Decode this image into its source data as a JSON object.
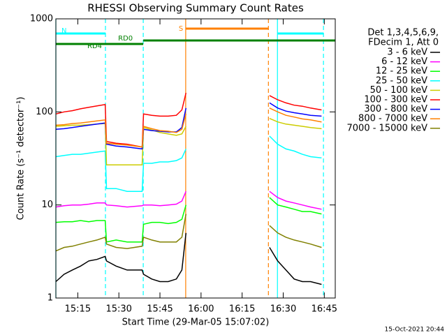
{
  "chart_data": {
    "type": "line",
    "title": "RHESSI Observing Summary Count Rates",
    "x_label": "Start Time (29-Mar-05 15:07:02)",
    "y_label": "Count Rate (s⁻¹ detector⁻¹)",
    "footer": "15-Oct-2021 20:44",
    "legend_header": [
      "Det 1,3,4,5,6,9,",
      "FDecim 1, Att 0"
    ],
    "log_y": true,
    "ylim": [
      1,
      1000
    ],
    "yticks": [
      1,
      10,
      100,
      1000
    ],
    "xlim": [
      7,
      109
    ],
    "xticks": [
      {
        "value": 15,
        "label": "15:15"
      },
      {
        "value": 30,
        "label": "15:30"
      },
      {
        "value": 45,
        "label": "15:45"
      },
      {
        "value": 60,
        "label": "16:00"
      },
      {
        "value": 75,
        "label": "16:15"
      },
      {
        "value": 90,
        "label": "16:30"
      },
      {
        "value": 105,
        "label": "16:45"
      }
    ],
    "x": [
      7,
      10,
      13,
      16,
      19,
      22,
      25,
      25.5,
      29,
      33,
      38.5,
      39,
      42,
      45,
      48,
      51,
      53,
      54.5,
      70,
      85,
      88,
      91,
      94,
      97,
      100,
      104
    ],
    "series": [
      {
        "name": "3 - 6 keV",
        "color": "#000000",
        "values": [
          1.5,
          1.8,
          2,
          2.2,
          2.5,
          2.6,
          2.8,
          2.5,
          2.2,
          2,
          2,
          1.8,
          1.6,
          1.5,
          1.5,
          1.6,
          2,
          5,
          null,
          3.5,
          2.5,
          2,
          1.6,
          1.5,
          1.5,
          1.4
        ]
      },
      {
        "name": "6 - 12 keV",
        "color": "#ff00ff",
        "values": [
          9.5,
          9.8,
          10,
          10,
          10.2,
          10.5,
          10.5,
          10,
          9.8,
          9.5,
          9.8,
          10,
          10,
          9.8,
          10,
          10.2,
          11,
          14,
          null,
          14,
          12,
          11,
          10.5,
          10,
          9.5,
          9
        ]
      },
      {
        "name": "12 - 25 keV",
        "color": "#00ff00",
        "values": [
          6.5,
          6.6,
          6.6,
          6.8,
          6.6,
          6.8,
          6.8,
          4,
          4.2,
          4,
          4,
          6.2,
          6.5,
          6.5,
          6.3,
          6.5,
          7,
          10,
          null,
          12,
          10,
          9.5,
          9,
          8.5,
          8.5,
          8
        ]
      },
      {
        "name": "25 - 50 keV",
        "color": "#00ffff",
        "values": [
          33,
          34,
          35,
          35,
          36,
          37,
          38,
          15,
          15,
          14,
          14,
          28,
          28,
          29,
          29,
          30,
          32,
          40,
          null,
          55,
          45,
          40,
          38,
          35,
          33,
          32
        ]
      },
      {
        "name": "50 - 100 keV",
        "color": "#cccc00",
        "values": [
          70,
          71,
          72,
          72,
          73,
          74,
          75,
          27,
          27,
          27,
          27,
          68,
          64,
          60,
          58,
          56,
          58,
          70,
          null,
          85,
          78,
          74,
          72,
          70,
          68,
          66
        ]
      },
      {
        "name": "100 - 300 keV",
        "color": "#ff0000",
        "values": [
          95,
          100,
          103,
          108,
          112,
          116,
          120,
          48,
          46,
          45,
          42,
          95,
          92,
          90,
          90,
          92,
          105,
          160,
          null,
          150,
          135,
          125,
          118,
          115,
          110,
          105
        ]
      },
      {
        "name": "300 - 800 keV",
        "color": "#0000ff",
        "values": [
          65,
          66,
          68,
          70,
          72,
          74,
          76,
          45,
          43,
          42,
          40,
          65,
          63,
          62,
          61,
          61,
          68,
          110,
          null,
          125,
          110,
          102,
          98,
          95,
          92,
          90
        ]
      },
      {
        "name": "800 - 7000 keV",
        "color": "#ff8000",
        "values": [
          72,
          73,
          75,
          76,
          78,
          80,
          82,
          46,
          45,
          44,
          42,
          70,
          66,
          63,
          62,
          60,
          65,
          95,
          null,
          110,
          100,
          92,
          88,
          84,
          82,
          78
        ]
      },
      {
        "name": "7000 - 15000 keV",
        "color": "#808000",
        "values": [
          3.2,
          3.5,
          3.6,
          3.8,
          4,
          4.2,
          4.5,
          3.8,
          3.5,
          3.4,
          3.6,
          4.5,
          4.2,
          4,
          4,
          4,
          4.5,
          8,
          null,
          6,
          5,
          4.5,
          4.2,
          4,
          3.8,
          3.5
        ]
      }
    ],
    "markers": [
      {
        "x": 7,
        "color": "#00ffff",
        "style": "solid"
      },
      {
        "x": 25.1,
        "color": "#00ffff",
        "style": "dashed"
      },
      {
        "x": 38.9,
        "color": "#00ffff",
        "style": "dashed"
      },
      {
        "x": 54.4,
        "color": "#ff8000",
        "style": "solid"
      },
      {
        "x": 84.6,
        "color": "#ff8000",
        "style": "dashed"
      },
      {
        "x": 87.9,
        "color": "#00ffff",
        "style": "solid"
      },
      {
        "x": 104.7,
        "color": "#00ffff",
        "style": "dashed"
      }
    ],
    "bars": [
      {
        "label": "S",
        "start": 54.4,
        "end": 84.6,
        "color": "#ff8000"
      },
      {
        "label": "N",
        "start": 7,
        "end": 25.1,
        "color": "#00ffff"
      },
      {
        "start": 87.9,
        "end": 104.7,
        "color": "#00ffff"
      },
      {
        "label": "RD0",
        "start": 38.9,
        "end": 109,
        "color": "#008000"
      },
      {
        "label": "RD4",
        "start": 7,
        "end": 38.9,
        "color": "#008000"
      }
    ]
  }
}
